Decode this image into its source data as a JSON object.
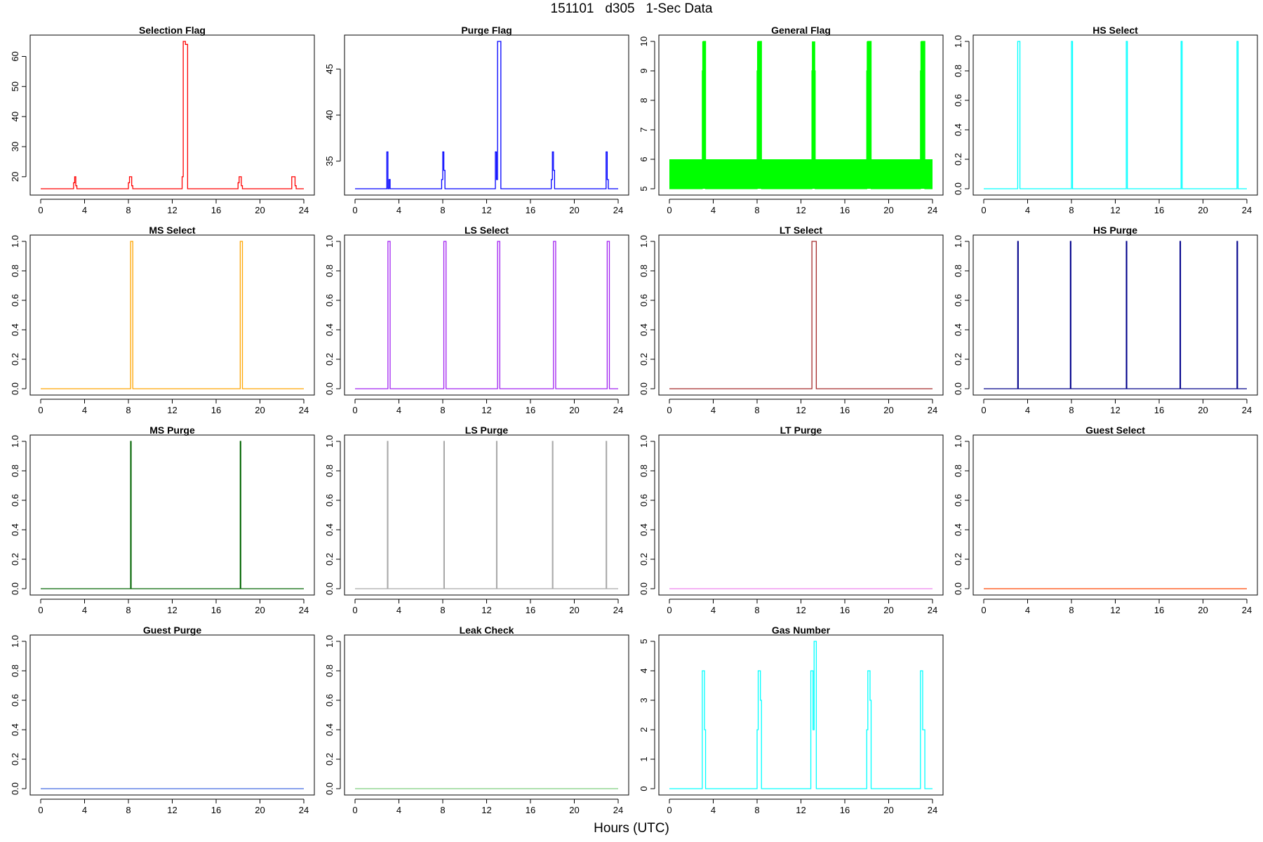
{
  "figure": {
    "title": "151101   d305   1-Sec Data",
    "xlabel": "Hours (UTC)"
  },
  "chart_data": [
    {
      "type": "line",
      "title": "Selection Flag",
      "color": "#ff0000",
      "xlim": [
        0,
        24
      ],
      "ylim": [
        16,
        65
      ],
      "xticks": [
        0,
        4,
        8,
        12,
        16,
        20,
        24
      ],
      "yticks": [
        20,
        30,
        40,
        50,
        60
      ],
      "series": [
        {
          "x": [
            0,
            3.0,
            3.0,
            3.1,
            3.1,
            3.2,
            3.2,
            3.3,
            3.3,
            8.0,
            8.0,
            8.1,
            8.1,
            8.3,
            8.3,
            8.4,
            8.4,
            12.9,
            12.9,
            13.0,
            13.0,
            13.2,
            13.2,
            13.4,
            13.4,
            18.0,
            18.0,
            18.1,
            18.1,
            18.3,
            18.3,
            18.4,
            18.4,
            22.9,
            22.9,
            23.2,
            23.2,
            23.3,
            23.3,
            24
          ],
          "y": [
            16,
            16,
            18,
            18,
            20,
            20,
            17,
            17,
            16,
            16,
            18,
            18,
            20,
            20,
            17,
            17,
            16,
            16,
            20,
            20,
            65,
            65,
            64,
            64,
            16,
            16,
            18,
            18,
            20,
            20,
            17,
            17,
            16,
            16,
            20,
            20,
            17,
            17,
            16,
            16
          ]
        }
      ]
    },
    {
      "type": "line",
      "title": "Purge Flag",
      "color": "#0000ff",
      "xlim": [
        0,
        24
      ],
      "ylim": [
        32,
        48
      ],
      "xticks": [
        0,
        4,
        8,
        12,
        16,
        20,
        24
      ],
      "yticks": [
        35,
        40,
        45
      ],
      "series": [
        {
          "x": [
            0,
            2.9,
            2.9,
            3.0,
            3.0,
            3.1,
            3.1,
            3.2,
            3.2,
            7.9,
            7.9,
            8.0,
            8.0,
            8.1,
            8.1,
            8.2,
            8.2,
            12.8,
            12.8,
            12.9,
            12.9,
            13.0,
            13.0,
            13.3,
            13.3,
            17.9,
            17.9,
            18.0,
            18.0,
            18.1,
            18.1,
            18.2,
            18.2,
            22.9,
            22.9,
            23.0,
            23.0,
            23.1,
            23.1,
            24
          ],
          "y": [
            32,
            32,
            36,
            36,
            32,
            32,
            33,
            33,
            32,
            32,
            33,
            33,
            36,
            36,
            34,
            34,
            32,
            32,
            36,
            36,
            33,
            33,
            48,
            48,
            32,
            32,
            33,
            33,
            36,
            36,
            34,
            34,
            32,
            32,
            36,
            36,
            33,
            33,
            32,
            32
          ]
        }
      ]
    },
    {
      "type": "area",
      "title": "General Flag",
      "color": "#00ff00",
      "xlim": [
        0,
        24
      ],
      "ylim": [
        5,
        10
      ],
      "xticks": [
        0,
        4,
        8,
        12,
        16,
        20,
        24
      ],
      "yticks": [
        5,
        6,
        7,
        8,
        9,
        10
      ],
      "blocks": [
        {
          "x0": 0,
          "x1": 3.0,
          "y": 6
        },
        {
          "x0": 3.3,
          "x1": 8.0,
          "y": 6
        },
        {
          "x0": 8.4,
          "x1": 13.0,
          "y": 6
        },
        {
          "x0": 13.3,
          "x1": 18.0,
          "y": 6
        },
        {
          "x0": 18.4,
          "x1": 22.9,
          "y": 6
        },
        {
          "x0": 23.3,
          "x1": 24,
          "y": 6
        },
        {
          "x0": 3.0,
          "x1": 3.3,
          "y": 10
        },
        {
          "x0": 8.0,
          "x1": 8.4,
          "y": 10
        },
        {
          "x0": 13.0,
          "x1": 13.3,
          "y": 10
        },
        {
          "x0": 18.0,
          "x1": 18.4,
          "y": 10
        },
        {
          "x0": 22.9,
          "x1": 23.3,
          "y": 10
        }
      ],
      "series": [
        {
          "x": [
            0,
            3.0,
            3.0,
            3.1,
            3.1,
            3.3,
            3.3,
            8.0,
            8.0,
            8.1,
            8.1,
            8.4,
            8.4,
            13.0,
            13.0,
            13.3,
            13.3,
            18.0,
            18.0,
            18.1,
            18.1,
            18.4,
            18.4,
            22.9,
            22.9,
            23.0,
            23.0,
            23.3,
            23.3,
            24
          ],
          "y": [
            5,
            5,
            9,
            9,
            10,
            10,
            5,
            5,
            9,
            9,
            10,
            10,
            5,
            5,
            9,
            9,
            5,
            5,
            9,
            9,
            10,
            10,
            5,
            5,
            9,
            9,
            10,
            10,
            5,
            5
          ]
        }
      ]
    },
    {
      "type": "line",
      "title": "HS Select",
      "color": "#00ffff",
      "xlim": [
        0,
        24
      ],
      "ylim": [
        0,
        1
      ],
      "xticks": [
        0,
        4,
        8,
        12,
        16,
        20,
        24
      ],
      "yticks": [
        0.0,
        0.2,
        0.4,
        0.6,
        0.8,
        1.0
      ],
      "series": [
        {
          "x": [
            0,
            3.1,
            3.1,
            3.3,
            3.3,
            8.0,
            8.0,
            8.1,
            8.1,
            13.0,
            13.0,
            13.1,
            13.1,
            18.0,
            18.0,
            18.1,
            18.1,
            23.1,
            23.1,
            23.2,
            23.2,
            24
          ],
          "y": [
            0,
            0,
            1,
            1,
            0,
            0,
            1,
            1,
            0,
            0,
            1,
            1,
            0,
            0,
            1,
            1,
            0,
            0,
            1,
            1,
            0,
            0
          ]
        }
      ]
    },
    {
      "type": "line",
      "title": "MS Select",
      "color": "#ffa500",
      "xlim": [
        0,
        24
      ],
      "ylim": [
        0,
        1
      ],
      "xticks": [
        0,
        4,
        8,
        12,
        16,
        20,
        24
      ],
      "yticks": [
        0.0,
        0.2,
        0.4,
        0.6,
        0.8,
        1.0
      ],
      "series": [
        {
          "x": [
            0,
            8.2,
            8.2,
            8.4,
            8.4,
            18.2,
            18.2,
            18.4,
            18.4,
            24
          ],
          "y": [
            0,
            0,
            1,
            1,
            0,
            0,
            1,
            1,
            0,
            0
          ]
        }
      ]
    },
    {
      "type": "line",
      "title": "LS Select",
      "color": "#a020f0",
      "xlim": [
        0,
        24
      ],
      "ylim": [
        0,
        1
      ],
      "xticks": [
        0,
        4,
        8,
        12,
        16,
        20,
        24
      ],
      "yticks": [
        0.0,
        0.2,
        0.4,
        0.6,
        0.8,
        1.0
      ],
      "series": [
        {
          "x": [
            0,
            3.0,
            3.0,
            3.2,
            3.2,
            8.1,
            8.1,
            8.3,
            8.3,
            13.0,
            13.0,
            13.2,
            13.2,
            18.1,
            18.1,
            18.3,
            18.3,
            23.0,
            23.0,
            23.2,
            23.2,
            24
          ],
          "y": [
            0,
            0,
            1,
            1,
            0,
            0,
            1,
            1,
            0,
            0,
            1,
            1,
            0,
            0,
            1,
            1,
            0,
            0,
            1,
            1,
            0,
            0
          ]
        }
      ]
    },
    {
      "type": "line",
      "title": "LT Select",
      "color": "#a52a2a",
      "xlim": [
        0,
        24
      ],
      "ylim": [
        0,
        1
      ],
      "xticks": [
        0,
        4,
        8,
        12,
        16,
        20,
        24
      ],
      "yticks": [
        0.0,
        0.2,
        0.4,
        0.6,
        0.8,
        1.0
      ],
      "series": [
        {
          "x": [
            0,
            13.0,
            13.0,
            13.4,
            13.4,
            24
          ],
          "y": [
            0,
            0,
            1,
            1,
            0,
            0
          ]
        }
      ]
    },
    {
      "type": "line",
      "title": "HS Purge",
      "color": "#00008b",
      "xlim": [
        0,
        24
      ],
      "ylim": [
        0,
        1
      ],
      "xticks": [
        0,
        4,
        8,
        12,
        16,
        20,
        24
      ],
      "yticks": [
        0.0,
        0.2,
        0.4,
        0.6,
        0.8,
        1.0
      ],
      "series": [
        {
          "x": [
            0,
            3.1,
            3.1,
            3.15,
            3.15,
            7.9,
            7.9,
            7.95,
            7.95,
            13.0,
            13.0,
            13.05,
            13.05,
            17.9,
            17.9,
            17.95,
            17.95,
            23.1,
            23.1,
            23.15,
            23.15,
            24
          ],
          "y": [
            0,
            0,
            1,
            1,
            0,
            0,
            1,
            1,
            0,
            0,
            1,
            1,
            0,
            0,
            1,
            1,
            0,
            0,
            1,
            1,
            0,
            0
          ]
        }
      ]
    },
    {
      "type": "line",
      "title": "MS Purge",
      "color": "#006400",
      "xlim": [
        0,
        24
      ],
      "ylim": [
        0,
        1
      ],
      "xticks": [
        0,
        4,
        8,
        12,
        16,
        20,
        24
      ],
      "yticks": [
        0.0,
        0.2,
        0.4,
        0.6,
        0.8,
        1.0
      ],
      "series": [
        {
          "x": [
            0,
            8.2,
            8.2,
            8.25,
            8.25,
            18.2,
            18.2,
            18.25,
            18.25,
            24
          ],
          "y": [
            0,
            0,
            1,
            1,
            0,
            0,
            1,
            1,
            0,
            0
          ]
        }
      ]
    },
    {
      "type": "line",
      "title": "LS Purge",
      "color": "#a9a9a9",
      "xlim": [
        0,
        24
      ],
      "ylim": [
        0,
        1
      ],
      "xticks": [
        0,
        4,
        8,
        12,
        16,
        20,
        24
      ],
      "yticks": [
        0.0,
        0.2,
        0.4,
        0.6,
        0.8,
        1.0
      ],
      "series": [
        {
          "x": [
            0,
            2.95,
            2.95,
            3.0,
            3.0,
            8.1,
            8.1,
            8.15,
            8.15,
            12.9,
            12.9,
            12.95,
            12.95,
            18.0,
            18.0,
            18.05,
            18.05,
            22.9,
            22.9,
            22.95,
            22.95,
            24
          ],
          "y": [
            0,
            0,
            1,
            1,
            0,
            0,
            1,
            1,
            0,
            0,
            1,
            1,
            0,
            0,
            1,
            1,
            0,
            0,
            1,
            1,
            0,
            0
          ]
        }
      ]
    },
    {
      "type": "line",
      "title": "LT Purge",
      "color": "#ee82ee",
      "xlim": [
        0,
        24
      ],
      "ylim": [
        0,
        1
      ],
      "xticks": [
        0,
        4,
        8,
        12,
        16,
        20,
        24
      ],
      "yticks": [
        0.0,
        0.2,
        0.4,
        0.6,
        0.8,
        1.0
      ],
      "series": [
        {
          "x": [
            0,
            24
          ],
          "y": [
            0,
            0
          ]
        }
      ]
    },
    {
      "type": "line",
      "title": "Guest Select",
      "color": "#ff4500",
      "xlim": [
        0,
        24
      ],
      "ylim": [
        0,
        1
      ],
      "xticks": [
        0,
        4,
        8,
        12,
        16,
        20,
        24
      ],
      "yticks": [
        0.0,
        0.2,
        0.4,
        0.6,
        0.8,
        1.0
      ],
      "series": [
        {
          "x": [
            0,
            24
          ],
          "y": [
            0,
            0
          ]
        }
      ]
    },
    {
      "type": "line",
      "title": "Guest Purge",
      "color": "#4169e1",
      "xlim": [
        0,
        24
      ],
      "ylim": [
        0,
        1
      ],
      "xticks": [
        0,
        4,
        8,
        12,
        16,
        20,
        24
      ],
      "yticks": [
        0.0,
        0.2,
        0.4,
        0.6,
        0.8,
        1.0
      ],
      "series": [
        {
          "x": [
            0,
            24
          ],
          "y": [
            0,
            0
          ]
        }
      ]
    },
    {
      "type": "line",
      "title": "Leak Check",
      "color": "#7ccd7c",
      "xlim": [
        0,
        24
      ],
      "ylim": [
        0,
        1
      ],
      "xticks": [
        0,
        4,
        8,
        12,
        16,
        20,
        24
      ],
      "yticks": [
        0.0,
        0.2,
        0.4,
        0.6,
        0.8,
        1.0
      ],
      "series": [
        {
          "x": [
            0,
            24
          ],
          "y": [
            0,
            0
          ]
        }
      ]
    },
    {
      "type": "line",
      "title": "Gas Number",
      "color": "#00ffff",
      "xlim": [
        0,
        24
      ],
      "ylim": [
        0,
        5
      ],
      "xticks": [
        0,
        4,
        8,
        12,
        16,
        20,
        24
      ],
      "yticks": [
        0,
        1,
        2,
        3,
        4,
        5
      ],
      "series": [
        {
          "x": [
            0,
            3.0,
            3.0,
            3.2,
            3.2,
            3.3,
            3.3,
            8.0,
            8.0,
            8.1,
            8.1,
            8.3,
            8.3,
            8.4,
            8.4,
            12.9,
            12.9,
            13.1,
            13.1,
            13.2,
            13.2,
            13.4,
            13.4,
            18.0,
            18.0,
            18.1,
            18.1,
            18.3,
            18.3,
            18.4,
            18.4,
            22.9,
            22.9,
            23.1,
            23.1,
            23.3,
            23.3,
            24
          ],
          "y": [
            0,
            0,
            4,
            4,
            2,
            2,
            0,
            0,
            2,
            2,
            4,
            4,
            3,
            3,
            0,
            0,
            4,
            4,
            2,
            2,
            5,
            5,
            0,
            0,
            2,
            2,
            4,
            4,
            3,
            3,
            0,
            0,
            4,
            4,
            2,
            2,
            0,
            0
          ]
        }
      ]
    }
  ]
}
